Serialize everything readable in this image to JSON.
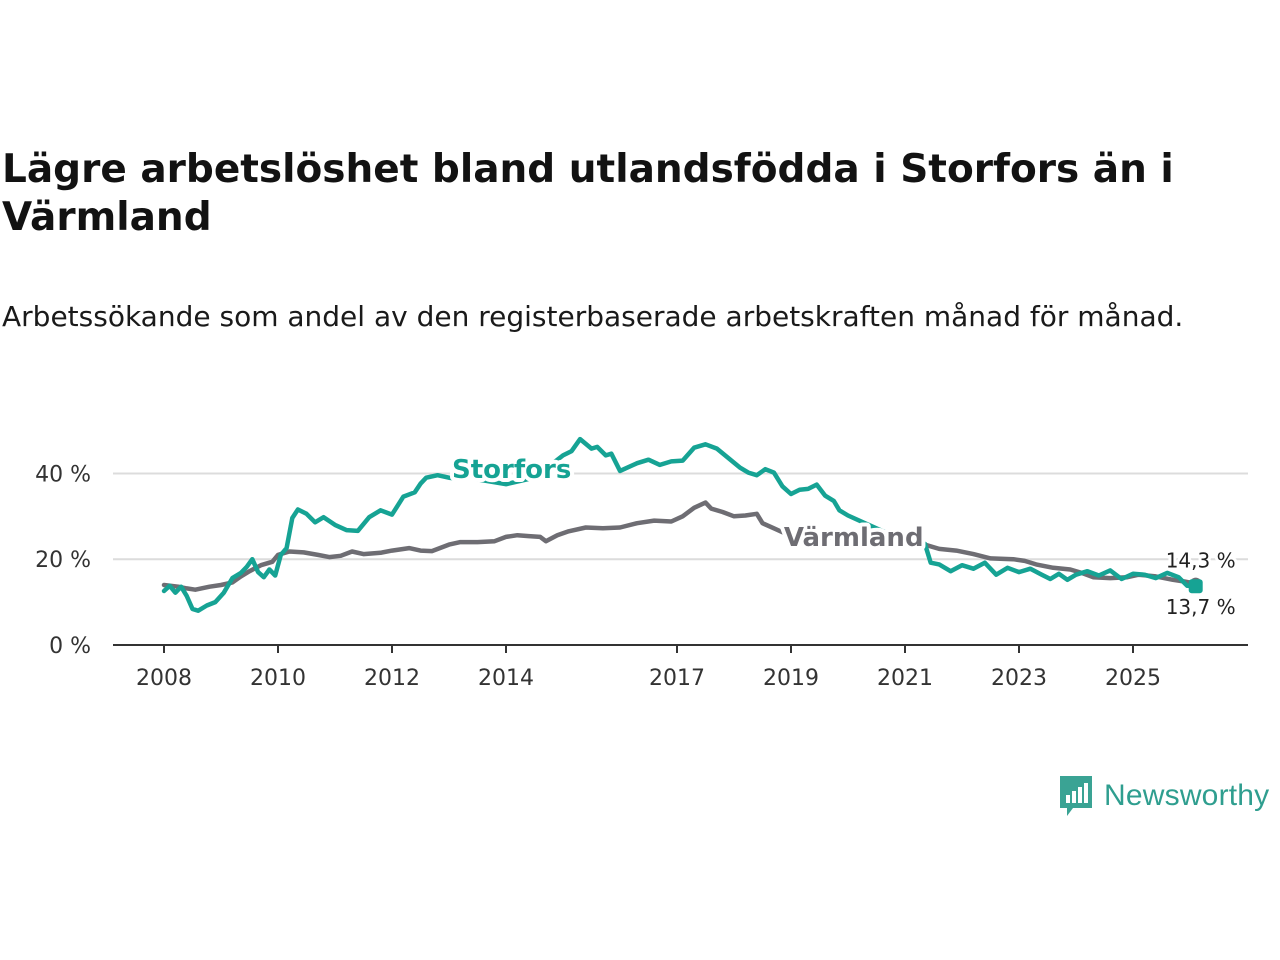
{
  "title": "Lägre arbetslöshet bland utlandsfödda i Storfors än i Värmland",
  "subtitle": "Arbetssökande som andel av den registerbaserade arbetskraften månad för månad.",
  "brand": {
    "name": "Newsworthy",
    "icon": "newsworthy-logo-icon",
    "color": "#3aa394"
  },
  "chart_data": {
    "type": "line",
    "title": "Lägre arbetslöshet bland utlandsfödda i Storfors än i Värmland",
    "subtitle": "Arbetssökande som andel av den registerbaserade arbetskraften månad för månad.",
    "xlabel": "",
    "ylabel": "",
    "xlim": [
      2008,
      2026.4
    ],
    "ylim": [
      0,
      45
    ],
    "x_ticks": [
      2008,
      2010,
      2012,
      2014,
      2017,
      2019,
      2021,
      2023,
      2025
    ],
    "x_tick_labels": [
      "2008",
      "2010",
      "2012",
      "2014",
      "2017",
      "2019",
      "2021",
      "2023",
      "2025"
    ],
    "y_ticks": [
      0,
      20,
      40
    ],
    "y_tick_labels": [
      "0 %",
      "20 %",
      "40 %"
    ],
    "grid": "horizontal",
    "series": [
      {
        "name": "Värmland",
        "label": "Värmland",
        "color": "#6e6d73",
        "end_label": "14,3 %",
        "points": [
          [
            2008.0,
            14.0
          ],
          [
            2008.25,
            13.6
          ],
          [
            2008.4,
            13.2
          ],
          [
            2008.55,
            12.9
          ],
          [
            2008.8,
            13.6
          ],
          [
            2009.0,
            14.0
          ],
          [
            2009.2,
            14.6
          ],
          [
            2009.35,
            16.0
          ],
          [
            2009.5,
            17.2
          ],
          [
            2009.7,
            18.6
          ],
          [
            2009.9,
            19.4
          ],
          [
            2010.0,
            21.0
          ],
          [
            2010.2,
            21.8
          ],
          [
            2010.45,
            21.6
          ],
          [
            2010.7,
            21.0
          ],
          [
            2010.9,
            20.5
          ],
          [
            2011.1,
            20.8
          ],
          [
            2011.3,
            21.8
          ],
          [
            2011.5,
            21.2
          ],
          [
            2011.8,
            21.5
          ],
          [
            2012.0,
            22.0
          ],
          [
            2012.3,
            22.6
          ],
          [
            2012.5,
            22.0
          ],
          [
            2012.7,
            21.9
          ],
          [
            2013.0,
            23.4
          ],
          [
            2013.2,
            24.0
          ],
          [
            2013.5,
            24.0
          ],
          [
            2013.8,
            24.2
          ],
          [
            2014.0,
            25.2
          ],
          [
            2014.2,
            25.6
          ],
          [
            2014.4,
            25.4
          ],
          [
            2014.6,
            25.2
          ],
          [
            2014.7,
            24.2
          ],
          [
            2014.9,
            25.6
          ],
          [
            2015.1,
            26.5
          ],
          [
            2015.4,
            27.4
          ],
          [
            2015.7,
            27.2
          ],
          [
            2016.0,
            27.4
          ],
          [
            2016.3,
            28.4
          ],
          [
            2016.6,
            29.0
          ],
          [
            2016.9,
            28.8
          ],
          [
            2017.1,
            30.0
          ],
          [
            2017.3,
            32.0
          ],
          [
            2017.5,
            33.2
          ],
          [
            2017.6,
            31.8
          ],
          [
            2017.8,
            31.0
          ],
          [
            2018.0,
            30.0
          ],
          [
            2018.2,
            30.2
          ],
          [
            2018.4,
            30.6
          ],
          [
            2018.5,
            28.4
          ],
          [
            2018.7,
            27.2
          ],
          [
            2018.9,
            26.0
          ],
          [
            2019.0,
            25.6
          ],
          [
            2021.1,
            24.0
          ],
          [
            2021.3,
            23.6
          ],
          [
            2021.6,
            22.4
          ],
          [
            2021.9,
            22.0
          ],
          [
            2022.2,
            21.2
          ],
          [
            2022.5,
            20.2
          ],
          [
            2022.9,
            20.0
          ],
          [
            2023.1,
            19.6
          ],
          [
            2023.3,
            18.8
          ],
          [
            2023.6,
            18.0
          ],
          [
            2023.9,
            17.6
          ],
          [
            2024.1,
            16.8
          ],
          [
            2024.3,
            15.8
          ],
          [
            2024.6,
            15.6
          ],
          [
            2024.9,
            15.8
          ],
          [
            2025.1,
            16.4
          ],
          [
            2025.4,
            16.0
          ],
          [
            2025.7,
            15.2
          ],
          [
            2025.9,
            14.8
          ],
          [
            2026.1,
            14.3
          ]
        ]
      },
      {
        "name": "Storfors",
        "label": "Storfors",
        "color": "#16a394",
        "end_label": "13,7 %",
        "points": [
          [
            2008.0,
            12.6
          ],
          [
            2008.1,
            13.8
          ],
          [
            2008.2,
            12.2
          ],
          [
            2008.3,
            13.6
          ],
          [
            2008.4,
            11.4
          ],
          [
            2008.5,
            8.4
          ],
          [
            2008.6,
            8.0
          ],
          [
            2008.75,
            9.2
          ],
          [
            2008.9,
            10.0
          ],
          [
            2009.05,
            12.2
          ],
          [
            2009.2,
            15.6
          ],
          [
            2009.35,
            16.8
          ],
          [
            2009.45,
            18.2
          ],
          [
            2009.55,
            20.0
          ],
          [
            2009.65,
            17.0
          ],
          [
            2009.75,
            15.8
          ],
          [
            2009.85,
            17.6
          ],
          [
            2009.95,
            16.2
          ],
          [
            2010.05,
            21.0
          ],
          [
            2010.15,
            22.6
          ],
          [
            2010.25,
            29.6
          ],
          [
            2010.35,
            31.6
          ],
          [
            2010.5,
            30.6
          ],
          [
            2010.65,
            28.6
          ],
          [
            2010.8,
            29.8
          ],
          [
            2011.0,
            28.0
          ],
          [
            2011.2,
            26.8
          ],
          [
            2011.4,
            26.6
          ],
          [
            2011.6,
            29.8
          ],
          [
            2011.8,
            31.4
          ],
          [
            2012.0,
            30.4
          ],
          [
            2012.2,
            34.6
          ],
          [
            2012.4,
            35.6
          ],
          [
            2012.5,
            37.6
          ],
          [
            2012.6,
            39.0
          ],
          [
            2012.8,
            39.6
          ],
          [
            2013.0,
            39.0
          ],
          [
            2013.15,
            38.8
          ],
          [
            2013.3,
            40.6
          ],
          [
            2013.5,
            38.6
          ],
          [
            2014.0,
            37.5
          ],
          [
            2014.5,
            39.0
          ],
          [
            2015.0,
            44.2
          ],
          [
            2015.15,
            45.2
          ],
          [
            2015.3,
            48.0
          ],
          [
            2015.5,
            45.8
          ],
          [
            2015.6,
            46.2
          ],
          [
            2015.75,
            44.2
          ],
          [
            2015.85,
            44.6
          ],
          [
            2016.0,
            40.6
          ],
          [
            2016.3,
            42.4
          ],
          [
            2016.5,
            43.2
          ],
          [
            2016.7,
            42.0
          ],
          [
            2016.9,
            42.8
          ],
          [
            2017.1,
            43.0
          ],
          [
            2017.3,
            46.0
          ],
          [
            2017.5,
            46.8
          ],
          [
            2017.7,
            45.8
          ],
          [
            2017.9,
            43.6
          ],
          [
            2018.1,
            41.4
          ],
          [
            2018.25,
            40.2
          ],
          [
            2018.4,
            39.6
          ],
          [
            2018.55,
            41.0
          ],
          [
            2018.7,
            40.2
          ],
          [
            2018.85,
            37.0
          ],
          [
            2019.0,
            35.2
          ],
          [
            2019.15,
            36.2
          ],
          [
            2019.3,
            36.4
          ],
          [
            2019.45,
            37.4
          ],
          [
            2019.6,
            34.8
          ],
          [
            2019.75,
            33.6
          ],
          [
            2019.85,
            31.4
          ],
          [
            2020.0,
            30.2
          ],
          [
            2021.2,
            23.0
          ],
          [
            2021.35,
            23.6
          ],
          [
            2021.45,
            19.2
          ],
          [
            2021.6,
            18.8
          ],
          [
            2021.8,
            17.2
          ],
          [
            2022.0,
            18.6
          ],
          [
            2022.2,
            17.8
          ],
          [
            2022.4,
            19.2
          ],
          [
            2022.6,
            16.4
          ],
          [
            2022.8,
            18.0
          ],
          [
            2023.0,
            17.0
          ],
          [
            2023.2,
            17.8
          ],
          [
            2023.4,
            16.4
          ],
          [
            2023.55,
            15.4
          ],
          [
            2023.7,
            16.6
          ],
          [
            2023.85,
            15.2
          ],
          [
            2024.0,
            16.4
          ],
          [
            2024.2,
            17.2
          ],
          [
            2024.4,
            16.2
          ],
          [
            2024.6,
            17.4
          ],
          [
            2024.8,
            15.4
          ],
          [
            2025.0,
            16.6
          ],
          [
            2025.2,
            16.4
          ],
          [
            2025.4,
            15.6
          ],
          [
            2025.6,
            16.8
          ],
          [
            2025.8,
            15.8
          ],
          [
            2025.95,
            13.8
          ],
          [
            2026.1,
            13.7
          ]
        ]
      }
    ]
  }
}
